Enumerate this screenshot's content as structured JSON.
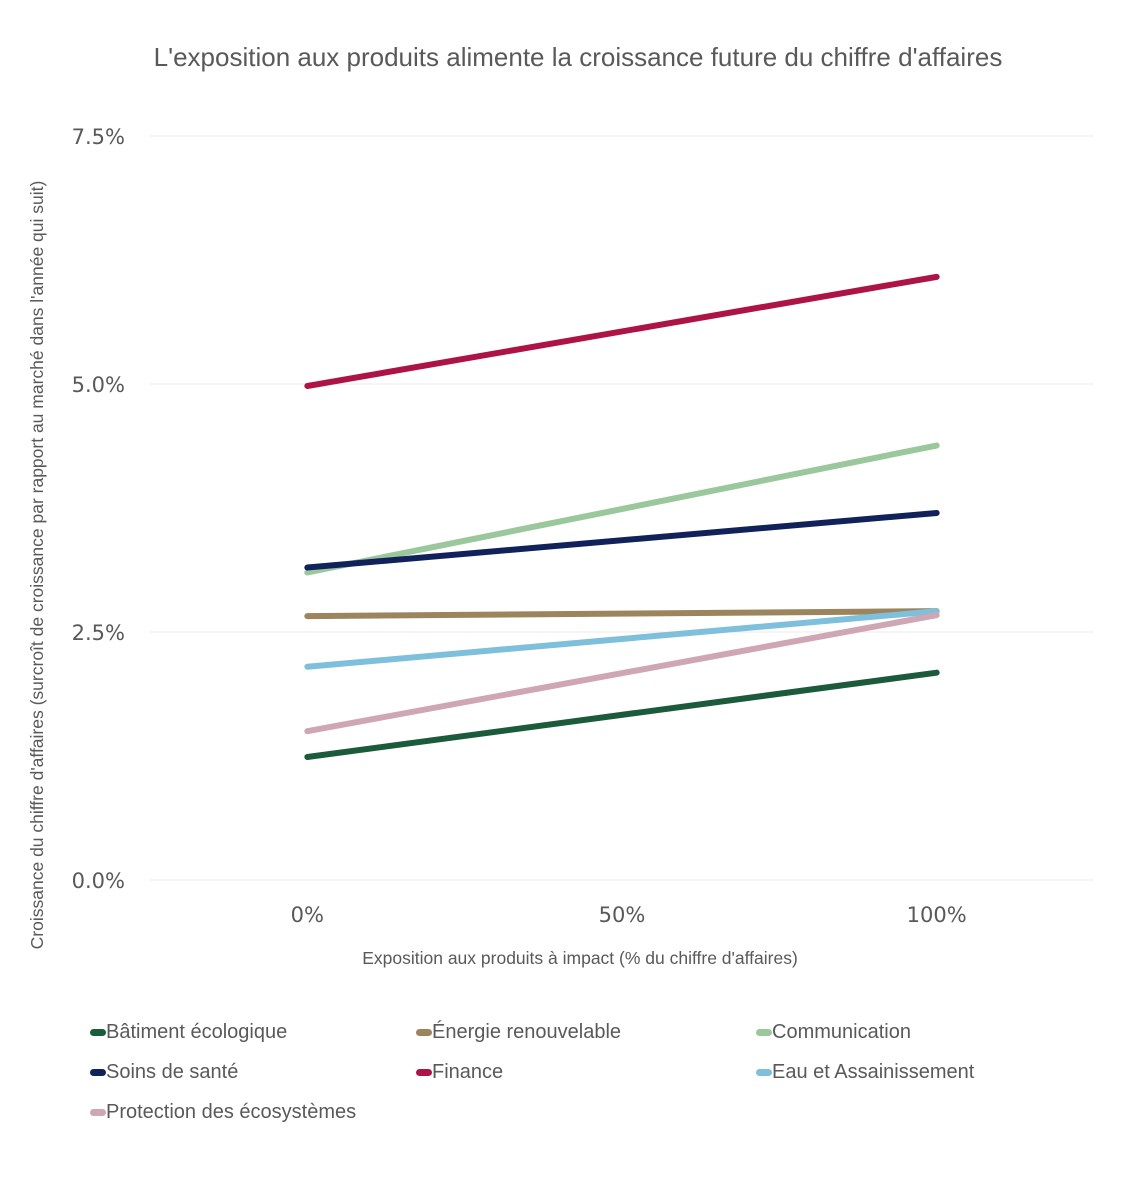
{
  "chart_data": {
    "type": "line",
    "title": "L'exposition aux produits alimente la croissance future du chiffre d'affaires",
    "xlabel": "Exposition aux produits à impact (% du chiffre d'affaires)",
    "ylabel": "Croissance du chiffre d'affaires (surcroît de croissance par rapport au marché dans l'année qui suit)",
    "x": [
      0,
      100
    ],
    "x_ticks": [
      0,
      50,
      100
    ],
    "x_tick_labels": [
      "0%",
      "50%",
      "100%"
    ],
    "xlim": [
      -25,
      125
    ],
    "y_ticks": [
      0,
      2.5,
      5.0,
      7.5
    ],
    "y_tick_labels": [
      "0.0%",
      "2.5%",
      "5.0%",
      "7.5%"
    ],
    "ylim": [
      0,
      7.5
    ],
    "grid": true,
    "legend_position": "bottom",
    "series": [
      {
        "name": "Bâtiment écologique",
        "color": "#1c5a3c",
        "values": [
          1.24,
          2.09
        ]
      },
      {
        "name": "Énergie renouvelable",
        "color": "#9c845c",
        "values": [
          2.66,
          2.71
        ]
      },
      {
        "name": "Communication",
        "color": "#9ac79c",
        "values": [
          3.1,
          4.38
        ]
      },
      {
        "name": "Soins de santé",
        "color": "#11215a",
        "values": [
          3.15,
          3.7
        ]
      },
      {
        "name": "Finance",
        "color": "#ad1445",
        "values": [
          4.98,
          6.08
        ]
      },
      {
        "name": "Eau et Assainissement",
        "color": "#7ebfdb",
        "values": [
          2.15,
          2.71
        ]
      },
      {
        "name": "Protection des écosystèmes",
        "color": "#cfa6b4",
        "values": [
          1.5,
          2.67
        ]
      }
    ]
  }
}
